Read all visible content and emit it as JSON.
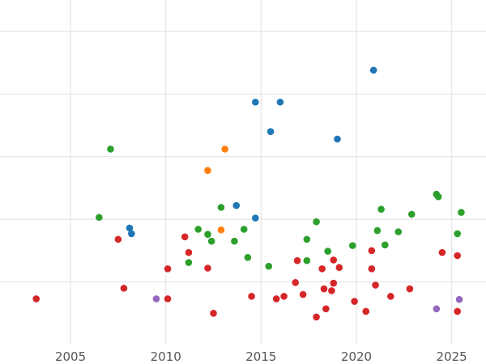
{
  "chart_data": {
    "type": "scatter",
    "title": "",
    "xlabel": "",
    "ylabel": "",
    "xlim": [
      2001.3,
      2026.8
    ],
    "ylim": [
      0,
      550
    ],
    "x_ticks": [
      2005,
      2010,
      2015,
      2020,
      2025
    ],
    "x_tick_labels": [
      "2005",
      "2010",
      "2015",
      "2020",
      "2025"
    ],
    "y_gridlines": [
      100,
      200,
      300,
      400,
      500
    ],
    "grid": true,
    "legend": "none",
    "series": [
      {
        "color": "#1f77b4",
        "points": [
          {
            "x": 2008.1,
            "y": 186
          },
          {
            "x": 2008.2,
            "y": 177
          },
          {
            "x": 2013.7,
            "y": 222
          },
          {
            "x": 2014.7,
            "y": 202
          },
          {
            "x": 2014.7,
            "y": 387
          },
          {
            "x": 2015.5,
            "y": 340
          },
          {
            "x": 2016.0,
            "y": 387
          },
          {
            "x": 2019.0,
            "y": 328
          },
          {
            "x": 2020.9,
            "y": 438
          }
        ]
      },
      {
        "color": "#ff7f0e",
        "points": [
          {
            "x": 2012.2,
            "y": 278
          },
          {
            "x": 2012.9,
            "y": 183
          },
          {
            "x": 2013.1,
            "y": 312
          }
        ]
      },
      {
        "color": "#2ca02c",
        "points": [
          {
            "x": 2006.5,
            "y": 203
          },
          {
            "x": 2007.1,
            "y": 312
          },
          {
            "x": 2011.2,
            "y": 131
          },
          {
            "x": 2011.7,
            "y": 184
          },
          {
            "x": 2012.2,
            "y": 176
          },
          {
            "x": 2012.4,
            "y": 165
          },
          {
            "x": 2012.9,
            "y": 219
          },
          {
            "x": 2013.6,
            "y": 165
          },
          {
            "x": 2014.1,
            "y": 184
          },
          {
            "x": 2014.3,
            "y": 139
          },
          {
            "x": 2015.4,
            "y": 125
          },
          {
            "x": 2017.4,
            "y": 134
          },
          {
            "x": 2017.4,
            "y": 168
          },
          {
            "x": 2017.9,
            "y": 196
          },
          {
            "x": 2018.5,
            "y": 149
          },
          {
            "x": 2019.8,
            "y": 158
          },
          {
            "x": 2021.1,
            "y": 182
          },
          {
            "x": 2021.3,
            "y": 216
          },
          {
            "x": 2021.5,
            "y": 159
          },
          {
            "x": 2022.2,
            "y": 180
          },
          {
            "x": 2022.9,
            "y": 208
          },
          {
            "x": 2024.2,
            "y": 240
          },
          {
            "x": 2024.3,
            "y": 236
          },
          {
            "x": 2025.3,
            "y": 177
          },
          {
            "x": 2025.5,
            "y": 211
          }
        ]
      },
      {
        "color": "#d62728",
        "points": [
          {
            "x": 2003.2,
            "y": 73
          },
          {
            "x": 2007.5,
            "y": 168
          },
          {
            "x": 2007.8,
            "y": 90
          },
          {
            "x": 2010.1,
            "y": 121
          },
          {
            "x": 2010.1,
            "y": 73
          },
          {
            "x": 2011.0,
            "y": 172
          },
          {
            "x": 2011.2,
            "y": 147
          },
          {
            "x": 2012.2,
            "y": 122
          },
          {
            "x": 2012.5,
            "y": 50
          },
          {
            "x": 2014.5,
            "y": 77
          },
          {
            "x": 2015.8,
            "y": 73
          },
          {
            "x": 2016.2,
            "y": 77
          },
          {
            "x": 2016.8,
            "y": 99
          },
          {
            "x": 2016.9,
            "y": 134
          },
          {
            "x": 2017.2,
            "y": 80
          },
          {
            "x": 2017.9,
            "y": 44
          },
          {
            "x": 2018.2,
            "y": 121
          },
          {
            "x": 2018.3,
            "y": 89
          },
          {
            "x": 2018.4,
            "y": 57
          },
          {
            "x": 2018.7,
            "y": 86
          },
          {
            "x": 2018.8,
            "y": 135
          },
          {
            "x": 2018.8,
            "y": 98
          },
          {
            "x": 2019.1,
            "y": 123
          },
          {
            "x": 2019.9,
            "y": 69
          },
          {
            "x": 2020.5,
            "y": 53
          },
          {
            "x": 2020.8,
            "y": 121
          },
          {
            "x": 2020.8,
            "y": 150
          },
          {
            "x": 2021.0,
            "y": 95
          },
          {
            "x": 2021.8,
            "y": 77
          },
          {
            "x": 2022.8,
            "y": 89
          },
          {
            "x": 2024.5,
            "y": 147
          },
          {
            "x": 2025.3,
            "y": 53
          },
          {
            "x": 2025.3,
            "y": 142
          }
        ]
      },
      {
        "color": "#9467bd",
        "points": [
          {
            "x": 2009.5,
            "y": 73
          },
          {
            "x": 2024.2,
            "y": 57
          },
          {
            "x": 2025.4,
            "y": 72
          }
        ]
      }
    ]
  }
}
